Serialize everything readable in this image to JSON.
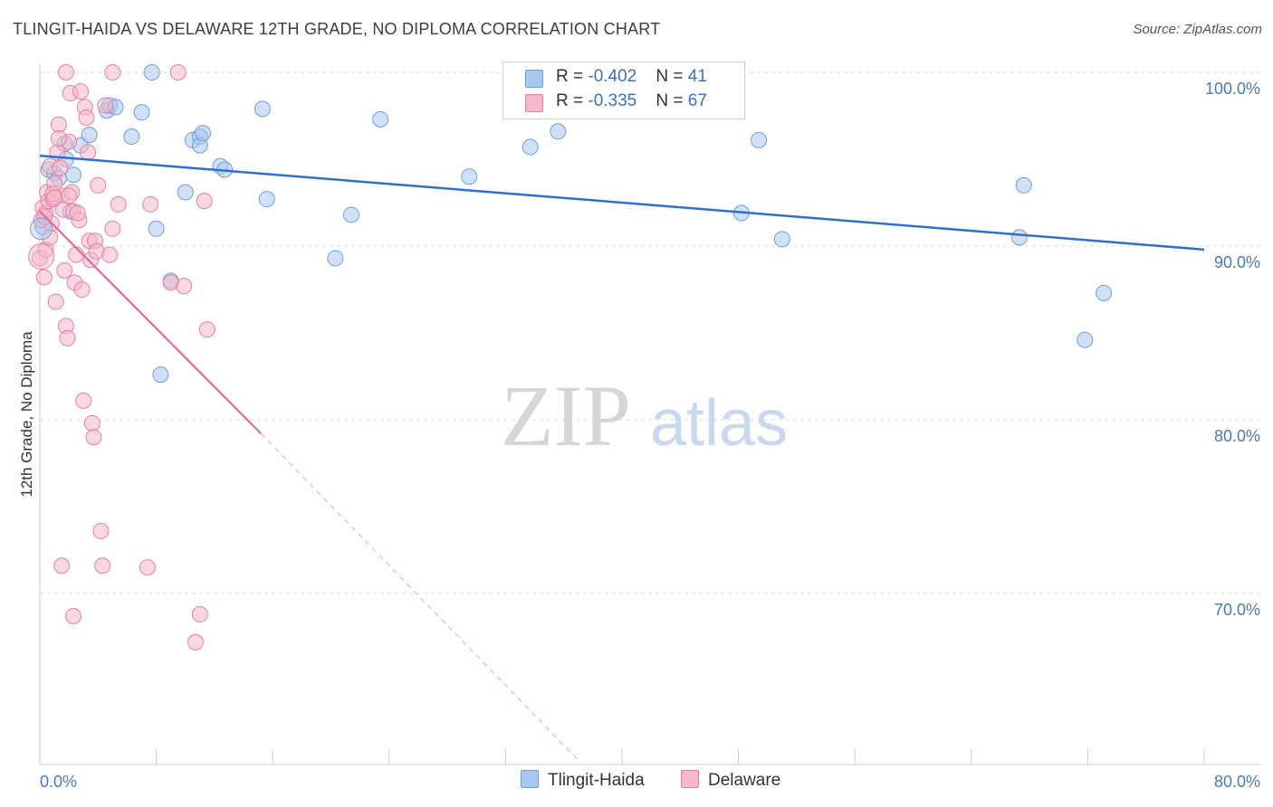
{
  "title": "TLINGIT-HAIDA VS DELAWARE 12TH GRADE, NO DIPLOMA CORRELATION CHART",
  "source": "Source: ZipAtlas.com",
  "watermark": {
    "zip": "ZIP",
    "atlas": "atlas"
  },
  "legend": [
    {
      "label": "R = ",
      "r": "-0.402",
      "n_label": "N = ",
      "n": "41",
      "color": "#a9c6ee",
      "stroke": "#6f9fd8"
    },
    {
      "label": "R = ",
      "r": "-0.335",
      "n_label": "N = ",
      "n": "67",
      "color": "#f6b8cb",
      "stroke": "#e87fa0"
    }
  ],
  "bottom_legend": [
    "Tlingit-Haida",
    "Delaware"
  ],
  "chart_data": {
    "type": "scatter",
    "title": "TLINGIT-HAIDA VS DELAWARE 12TH GRADE, NO DIPLOMA CORRELATION CHART",
    "xlabel": "",
    "ylabel": "12th Grade, No Diploma",
    "xlim": [
      0,
      80
    ],
    "ylim": [
      60,
      102.5
    ],
    "x_tick_labels": [
      "0.0%",
      "80.0%"
    ],
    "y_ticks": [
      100,
      90,
      80,
      70
    ],
    "y_tick_labels": [
      "100.0%",
      "90.0%",
      "80.0%",
      "70.0%"
    ],
    "series": [
      {
        "name": "Tlingit-Haida",
        "color": "#a9c6ee",
        "stroke": "#6f9fd8",
        "trend": {
          "x": [
            0,
            80
          ],
          "y": [
            95.2,
            89.8
          ],
          "color": "#2f6fcc"
        },
        "points": [
          [
            0.2,
            91.1
          ],
          [
            0.6,
            94.4
          ],
          [
            1.0,
            94.2
          ],
          [
            1.3,
            93.9
          ],
          [
            1.7,
            95.9
          ],
          [
            1.8,
            95.0
          ],
          [
            2.1,
            92.0
          ],
          [
            2.3,
            94.1
          ],
          [
            2.8,
            95.8
          ],
          [
            3.4,
            96.4
          ],
          [
            4.6,
            97.8
          ],
          [
            4.8,
            98.1
          ],
          [
            5.2,
            98.0
          ],
          [
            6.3,
            96.3
          ],
          [
            7.0,
            97.7
          ],
          [
            7.7,
            100.0
          ],
          [
            8.0,
            91.0
          ],
          [
            8.3,
            82.6
          ],
          [
            9.0,
            88.0
          ],
          [
            10.0,
            93.1
          ],
          [
            10.5,
            96.1
          ],
          [
            11.0,
            96.3
          ],
          [
            11.0,
            95.8
          ],
          [
            12.4,
            94.6
          ],
          [
            12.7,
            94.4
          ],
          [
            15.3,
            97.9
          ],
          [
            15.6,
            92.7
          ],
          [
            20.3,
            89.3
          ],
          [
            21.4,
            91.8
          ],
          [
            23.4,
            97.3
          ],
          [
            29.5,
            94.0
          ],
          [
            33.7,
            95.7
          ],
          [
            35.6,
            96.6
          ],
          [
            48.2,
            91.9
          ],
          [
            49.4,
            96.1
          ],
          [
            51.0,
            90.4
          ],
          [
            67.3,
            90.5
          ],
          [
            67.6,
            93.5
          ],
          [
            71.8,
            84.6
          ],
          [
            73.1,
            87.3
          ],
          [
            11.2,
            96.5
          ]
        ]
      },
      {
        "name": "Delaware",
        "color": "#f6b8cb",
        "stroke": "#e87fa0",
        "trend": {
          "x": [
            0,
            15.2
          ],
          "y": [
            92.0,
            79.2
          ],
          "dash_to": [
            37,
            60.4
          ],
          "color": "#e06b94"
        },
        "points": [
          [
            0.0,
            89.3
          ],
          [
            0.1,
            91.5
          ],
          [
            0.2,
            92.2
          ],
          [
            0.3,
            88.2
          ],
          [
            0.4,
            91.9
          ],
          [
            0.5,
            93.1
          ],
          [
            0.6,
            92.6
          ],
          [
            0.7,
            94.6
          ],
          [
            0.8,
            91.3
          ],
          [
            0.9,
            92.7
          ],
          [
            1.0,
            93.6
          ],
          [
            1.1,
            86.8
          ],
          [
            1.2,
            95.4
          ],
          [
            1.3,
            97.0
          ],
          [
            1.4,
            94.5
          ],
          [
            1.5,
            92.9
          ],
          [
            1.6,
            92.1
          ],
          [
            1.7,
            88.6
          ],
          [
            1.8,
            85.4
          ],
          [
            1.9,
            84.7
          ],
          [
            2.0,
            96.0
          ],
          [
            2.1,
            98.8
          ],
          [
            2.2,
            93.1
          ],
          [
            2.3,
            92.0
          ],
          [
            2.4,
            87.9
          ],
          [
            2.5,
            89.5
          ],
          [
            2.7,
            91.5
          ],
          [
            2.8,
            98.9
          ],
          [
            2.9,
            87.5
          ],
          [
            3.0,
            81.1
          ],
          [
            3.1,
            98.0
          ],
          [
            3.2,
            97.4
          ],
          [
            3.3,
            95.4
          ],
          [
            3.4,
            90.3
          ],
          [
            3.5,
            89.2
          ],
          [
            3.6,
            79.8
          ],
          [
            3.7,
            79.0
          ],
          [
            3.8,
            90.3
          ],
          [
            3.9,
            89.7
          ],
          [
            4.0,
            93.5
          ],
          [
            4.2,
            73.6
          ],
          [
            4.3,
            71.6
          ],
          [
            4.5,
            98.1
          ],
          [
            4.8,
            89.5
          ],
          [
            5.0,
            91.0
          ],
          [
            5.4,
            92.4
          ],
          [
            5.0,
            100.0
          ],
          [
            7.4,
            71.5
          ],
          [
            7.6,
            92.4
          ],
          [
            9.0,
            87.9
          ],
          [
            9.9,
            87.7
          ],
          [
            9.5,
            100.0
          ],
          [
            10.7,
            67.2
          ],
          [
            11.0,
            68.8
          ],
          [
            11.3,
            92.6
          ],
          [
            11.5,
            85.2
          ],
          [
            1.5,
            71.6
          ],
          [
            2.3,
            68.7
          ],
          [
            0.4,
            89.8
          ],
          [
            1.8,
            100.0
          ],
          [
            0.9,
            93.0
          ],
          [
            2.0,
            92.9
          ],
          [
            1.3,
            96.2
          ],
          [
            0.3,
            91.7
          ],
          [
            1.0,
            92.8
          ],
          [
            2.6,
            91.9
          ],
          [
            0.7,
            90.5
          ]
        ]
      }
    ]
  }
}
